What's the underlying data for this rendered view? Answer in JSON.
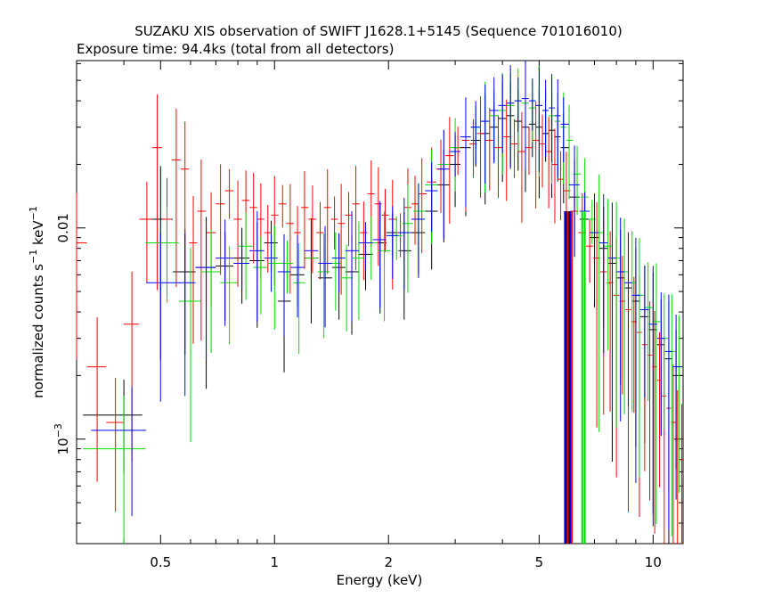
{
  "chart_data": {
    "type": "scatter",
    "title": "SUZAKU XIS observation of SWIFT J1628.1+5145 (Sequence 701016010)",
    "subtitle": "Exposure time: 94.4ks (total from all detectors)",
    "xlabel": "Energy (keV)",
    "ylabel": {
      "main": "normalized counts s",
      "exp1": "−1",
      "mid": " keV",
      "exp2": "−1"
    },
    "xscale": "log",
    "yscale": "log",
    "xlim": [
      0.3,
      12
    ],
    "ylim": [
      0.00032,
      0.062
    ],
    "xticks": [
      {
        "value": 0.5,
        "label": "0.5"
      },
      {
        "value": 1,
        "label": "1"
      },
      {
        "value": 2,
        "label": "2"
      },
      {
        "value": 5,
        "label": "5"
      },
      {
        "value": 10,
        "label": "10"
      }
    ],
    "yticks": [
      {
        "value": 0.001,
        "base": "10",
        "exp": "−3"
      },
      {
        "value": 0.01,
        "base": "0.01",
        "exp": ""
      }
    ],
    "colors": {
      "xis0": "#000000",
      "xis1": "#ff0000",
      "xis2": "#00dd00",
      "xis3": "#0000ff"
    },
    "series": [
      {
        "color": "black",
        "x": [
          0.4,
          0.5,
          0.58,
          0.66,
          0.74,
          0.82,
          0.9,
          0.98,
          1.06,
          1.15,
          1.25,
          1.36,
          1.48,
          1.6,
          1.74,
          1.9,
          2.05,
          2.2,
          2.4,
          2.6,
          2.8,
          3.0,
          3.2,
          3.4,
          3.6,
          3.8,
          4.0,
          4.2,
          4.4,
          4.6,
          4.8,
          5.0,
          5.2,
          5.4,
          5.6,
          5.8,
          6.2,
          6.6,
          7.0,
          7.4,
          7.8,
          8.2,
          8.6,
          9.0,
          9.5,
          10.0,
          10.5,
          11.0,
          11.5
        ],
        "y": [
          0.0013,
          0.011,
          0.0062,
          0.0065,
          0.0066,
          0.0072,
          0.007,
          0.0085,
          0.0045,
          0.006,
          0.0072,
          0.0058,
          0.0065,
          0.0062,
          0.0075,
          0.0085,
          0.0095,
          0.0078,
          0.0095,
          0.012,
          0.016,
          0.02,
          0.024,
          0.026,
          0.028,
          0.03,
          0.033,
          0.034,
          0.032,
          0.03,
          0.031,
          0.03,
          0.028,
          0.029,
          0.027,
          0.024,
          0.014,
          0.011,
          0.009,
          0.008,
          0.0068,
          0.0058,
          0.0052,
          0.0045,
          0.0038,
          0.0033,
          0.0028,
          0.0024,
          0.002
        ]
      },
      {
        "color": "red",
        "x": [
          0.3,
          0.34,
          0.38,
          0.42,
          0.46,
          0.49,
          0.52,
          0.55,
          0.58,
          0.61,
          0.64,
          0.68,
          0.72,
          0.76,
          0.8,
          0.84,
          0.88,
          0.92,
          0.96,
          1.0,
          1.05,
          1.1,
          1.15,
          1.2,
          1.26,
          1.32,
          1.38,
          1.44,
          1.5,
          1.57,
          1.64,
          1.72,
          1.8,
          1.88,
          1.96,
          2.05,
          2.15,
          2.25,
          2.35,
          2.45,
          2.6,
          2.75,
          2.9,
          3.05,
          3.2,
          3.35,
          3.5,
          3.7,
          3.9,
          4.1,
          4.3,
          4.5,
          4.7,
          4.9,
          5.1,
          5.3,
          5.5,
          5.7,
          5.9,
          6.2,
          6.5,
          6.8,
          7.1,
          7.4,
          7.7,
          8.0,
          8.3,
          8.6,
          8.9,
          9.2,
          9.5,
          9.8,
          10.1,
          10.4,
          10.7,
          11.0,
          11.3,
          11.6,
          11.9
        ],
        "y": [
          0.0085,
          0.0022,
          0.0012,
          0.0035,
          0.011,
          0.024,
          0.011,
          0.021,
          0.019,
          0.0085,
          0.012,
          0.0095,
          0.013,
          0.015,
          0.011,
          0.0135,
          0.0125,
          0.011,
          0.0095,
          0.0115,
          0.013,
          0.0105,
          0.0095,
          0.0125,
          0.011,
          0.0095,
          0.0125,
          0.011,
          0.0105,
          0.0115,
          0.013,
          0.0095,
          0.0145,
          0.013,
          0.0115,
          0.011,
          0.0095,
          0.0125,
          0.013,
          0.0145,
          0.0165,
          0.019,
          0.022,
          0.024,
          0.026,
          0.025,
          0.028,
          0.026,
          0.024,
          0.027,
          0.025,
          0.023,
          0.024,
          0.026,
          0.025,
          0.023,
          0.02,
          0.017,
          0.015,
          0.012,
          0.0095,
          0.0082,
          0.0072,
          0.0062,
          0.0055,
          0.0048,
          0.0045,
          0.0041,
          0.0036,
          0.0032,
          0.0028,
          0.0025,
          0.0022,
          0.0019,
          0.0016,
          0.0014,
          0.0012,
          0.001,
          0.0008
        ]
      },
      {
        "color": "green",
        "x": [
          0.4,
          0.52,
          0.6,
          0.68,
          0.76,
          0.84,
          0.92,
          1.0,
          1.08,
          1.16,
          1.25,
          1.35,
          1.45,
          1.55,
          1.67,
          1.8,
          1.95,
          2.1,
          2.25,
          2.4,
          2.6,
          2.8,
          3.0,
          3.2,
          3.4,
          3.6,
          3.8,
          4.0,
          4.2,
          4.4,
          4.6,
          4.8,
          5.0,
          5.2,
          5.4,
          5.6,
          5.8,
          6.0,
          6.3,
          6.6,
          6.9,
          7.2,
          7.6,
          8.0,
          8.4,
          8.8,
          9.2,
          9.7,
          10.2,
          10.7,
          11.2,
          11.7
        ],
        "y": [
          0.0009,
          0.0085,
          0.0045,
          0.0062,
          0.0055,
          0.0082,
          0.0065,
          0.0068,
          0.0068,
          0.0055,
          0.0072,
          0.0062,
          0.0068,
          0.0058,
          0.0072,
          0.0085,
          0.0078,
          0.0092,
          0.0105,
          0.012,
          0.016,
          0.02,
          0.024,
          0.027,
          0.03,
          0.032,
          0.034,
          0.036,
          0.038,
          0.04,
          0.039,
          0.037,
          0.038,
          0.036,
          0.034,
          0.032,
          0.03,
          0.026,
          0.018,
          0.014,
          0.011,
          0.0095,
          0.0082,
          0.0072,
          0.0062,
          0.0055,
          0.0048,
          0.0042,
          0.0036,
          0.003,
          0.0026,
          0.0022
        ]
      },
      {
        "color": "blue",
        "x": [
          0.42,
          0.5,
          0.58,
          0.66,
          0.74,
          0.82,
          0.9,
          0.98,
          1.06,
          1.15,
          1.25,
          1.36,
          1.48,
          1.6,
          1.74,
          1.9,
          2.05,
          2.2,
          2.4,
          2.6,
          2.8,
          3.0,
          3.2,
          3.4,
          3.6,
          3.8,
          4.0,
          4.2,
          4.4,
          4.6,
          4.8,
          5.0,
          5.2,
          5.4,
          5.6,
          5.8,
          6.2,
          6.6,
          7.0,
          7.4,
          7.8,
          8.2,
          8.6,
          9.0,
          9.5,
          10.0,
          10.5,
          11.0,
          11.5
        ],
        "y": [
          0.0011,
          0.0055,
          0.0055,
          0.0065,
          0.0072,
          0.0068,
          0.0078,
          0.0072,
          0.0062,
          0.0065,
          0.0078,
          0.0068,
          0.0072,
          0.0078,
          0.0085,
          0.0088,
          0.0092,
          0.0095,
          0.011,
          0.015,
          0.019,
          0.023,
          0.027,
          0.03,
          0.032,
          0.036,
          0.038,
          0.039,
          0.04,
          0.041,
          0.04,
          0.038,
          0.036,
          0.037,
          0.034,
          0.031,
          0.016,
          0.012,
          0.0095,
          0.0085,
          0.0072,
          0.0062,
          0.0055,
          0.0048,
          0.0041,
          0.0035,
          0.003,
          0.0026,
          0.0022
        ]
      }
    ],
    "dropouts": [
      {
        "color": "blue",
        "x": [
          5.85,
          5.95,
          6.05
        ]
      },
      {
        "color": "black",
        "x": [
          5.9,
          6.0
        ]
      },
      {
        "color": "green",
        "x": [
          6.5,
          6.6
        ]
      },
      {
        "color": "red",
        "x": [
          5.95,
          6.1
        ]
      }
    ],
    "grid": false,
    "legend": "none"
  }
}
